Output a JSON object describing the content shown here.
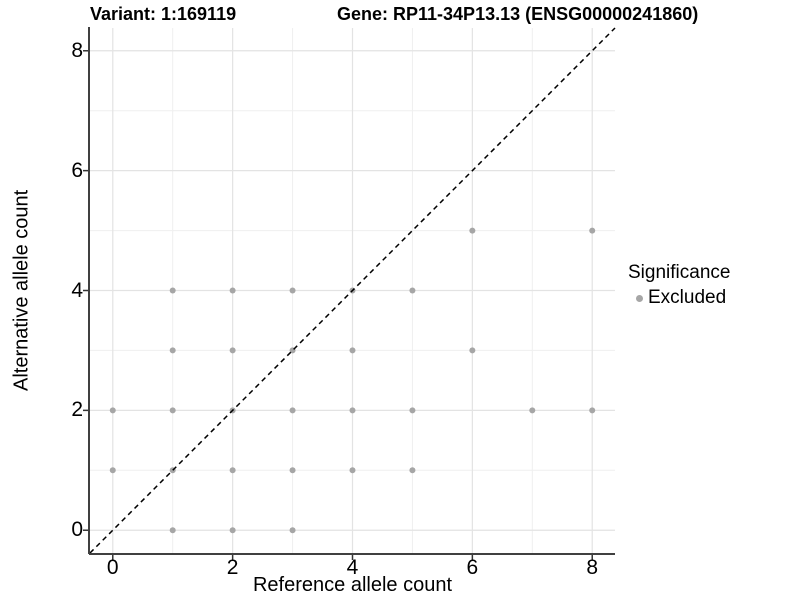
{
  "chart_data": {
    "type": "scatter",
    "title_left": "Variant: 1:169119",
    "title_right": "Gene: RP11-34P13.13 (ENSG00000241860)",
    "xlabel": "Reference allele count",
    "ylabel": "Alternative allele count",
    "xlim": [
      -0.38,
      8.38
    ],
    "ylim": [
      -0.38,
      8.38
    ],
    "x_ticks": [
      0,
      2,
      4,
      6,
      8
    ],
    "y_ticks": [
      0,
      2,
      4,
      6,
      8
    ],
    "minor_gridlines": [
      1,
      3,
      5,
      7
    ],
    "grid": "major and minor, light grey on white",
    "legend_position": "right",
    "legend": {
      "title": "Significance",
      "entries": [
        {
          "label": "Excluded",
          "marker_color": "#a6a6a6"
        }
      ]
    },
    "reference_line": {
      "kind": "identity y=x",
      "style": "dashed",
      "color": "#000000"
    },
    "series": [
      {
        "name": "Excluded",
        "marker_color": "#a6a6a6",
        "points": [
          [
            1,
            0
          ],
          [
            2,
            0
          ],
          [
            3,
            0
          ],
          [
            0,
            1
          ],
          [
            1,
            1
          ],
          [
            2,
            1
          ],
          [
            3,
            1
          ],
          [
            4,
            1
          ],
          [
            5,
            1
          ],
          [
            0,
            2
          ],
          [
            1,
            2
          ],
          [
            2,
            2
          ],
          [
            3,
            2
          ],
          [
            4,
            2
          ],
          [
            5,
            2
          ],
          [
            7,
            2
          ],
          [
            8,
            2
          ],
          [
            1,
            3
          ],
          [
            2,
            3
          ],
          [
            3,
            3
          ],
          [
            4,
            3
          ],
          [
            6,
            3
          ],
          [
            1,
            4
          ],
          [
            2,
            4
          ],
          [
            3,
            4
          ],
          [
            4,
            4
          ],
          [
            5,
            4
          ],
          [
            6,
            5
          ],
          [
            8,
            5
          ]
        ]
      }
    ]
  },
  "colors": {
    "background": "#ffffff",
    "grid_major": "#e3e3e3",
    "grid_minor": "#efefef",
    "axis_line": "#404040",
    "tick_mark": "#333333",
    "text": "#000000",
    "point": "#a6a6a6",
    "dashed_line": "#000000"
  }
}
